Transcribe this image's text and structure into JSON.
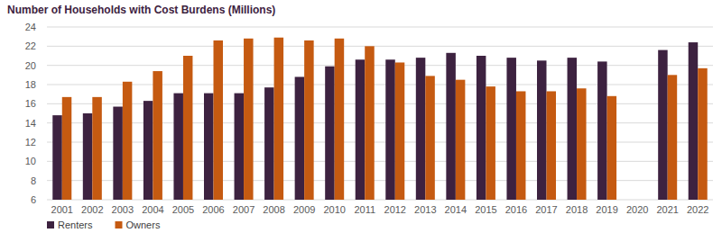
{
  "chart_data": {
    "type": "bar",
    "title": "Number of Households with Cost Burdens (Millions)",
    "categories": [
      "2001",
      "2002",
      "2003",
      "2004",
      "2005",
      "2006",
      "2007",
      "2008",
      "2009",
      "2010",
      "2011",
      "2012",
      "2013",
      "2014",
      "2015",
      "2016",
      "2017",
      "2018",
      "2019",
      "2020",
      "2021",
      "2022"
    ],
    "series": [
      {
        "name": "Renters",
        "color": "#3d2240",
        "values": [
          14.8,
          15.0,
          15.7,
          16.3,
          17.1,
          17.1,
          17.1,
          17.7,
          18.8,
          19.9,
          20.6,
          20.6,
          20.8,
          21.3,
          21.0,
          20.8,
          20.5,
          20.8,
          20.4,
          null,
          21.6,
          22.4
        ]
      },
      {
        "name": "Owners",
        "color": "#c55a11",
        "values": [
          16.7,
          16.7,
          18.3,
          19.4,
          21.0,
          22.6,
          22.8,
          22.9,
          22.6,
          22.8,
          22.0,
          20.3,
          18.9,
          18.5,
          17.8,
          17.3,
          17.3,
          17.6,
          16.8,
          null,
          19.0,
          19.7
        ]
      }
    ],
    "ylim": [
      6,
      24
    ],
    "yticks": [
      6,
      8,
      10,
      12,
      14,
      16,
      18,
      20,
      22,
      24
    ],
    "grid": true,
    "legend": "bottom-left"
  }
}
